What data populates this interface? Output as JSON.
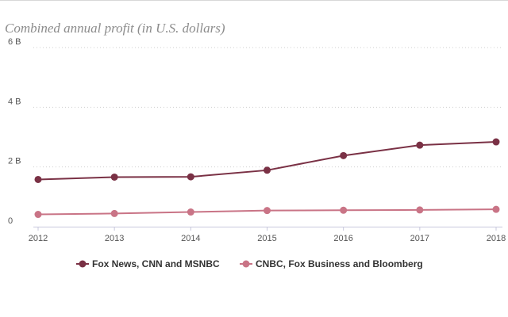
{
  "chart_data": {
    "type": "line",
    "title": "Combined annual profit (in U.S. dollars)",
    "xlabel": "",
    "ylabel": "",
    "categories": [
      "2012",
      "2013",
      "2014",
      "2015",
      "2016",
      "2017",
      "2018"
    ],
    "ylim": [
      0,
      6
    ],
    "yticks": [
      {
        "value": 0,
        "label": "0"
      },
      {
        "value": 2,
        "label": "2 B"
      },
      {
        "value": 4,
        "label": "4 B"
      },
      {
        "value": 6,
        "label": "6 B"
      }
    ],
    "grid": true,
    "legend_position": "bottom",
    "series": [
      {
        "name": "Fox News, CNN and MSNBC",
        "color": "#7a3145",
        "values": [
          1.58,
          1.66,
          1.67,
          1.89,
          2.38,
          2.73,
          2.84
        ]
      },
      {
        "name": "CNBC, Fox Business and Bloomberg",
        "color": "#c97486",
        "values": [
          0.41,
          0.44,
          0.49,
          0.54,
          0.55,
          0.56,
          0.58
        ]
      }
    ]
  }
}
